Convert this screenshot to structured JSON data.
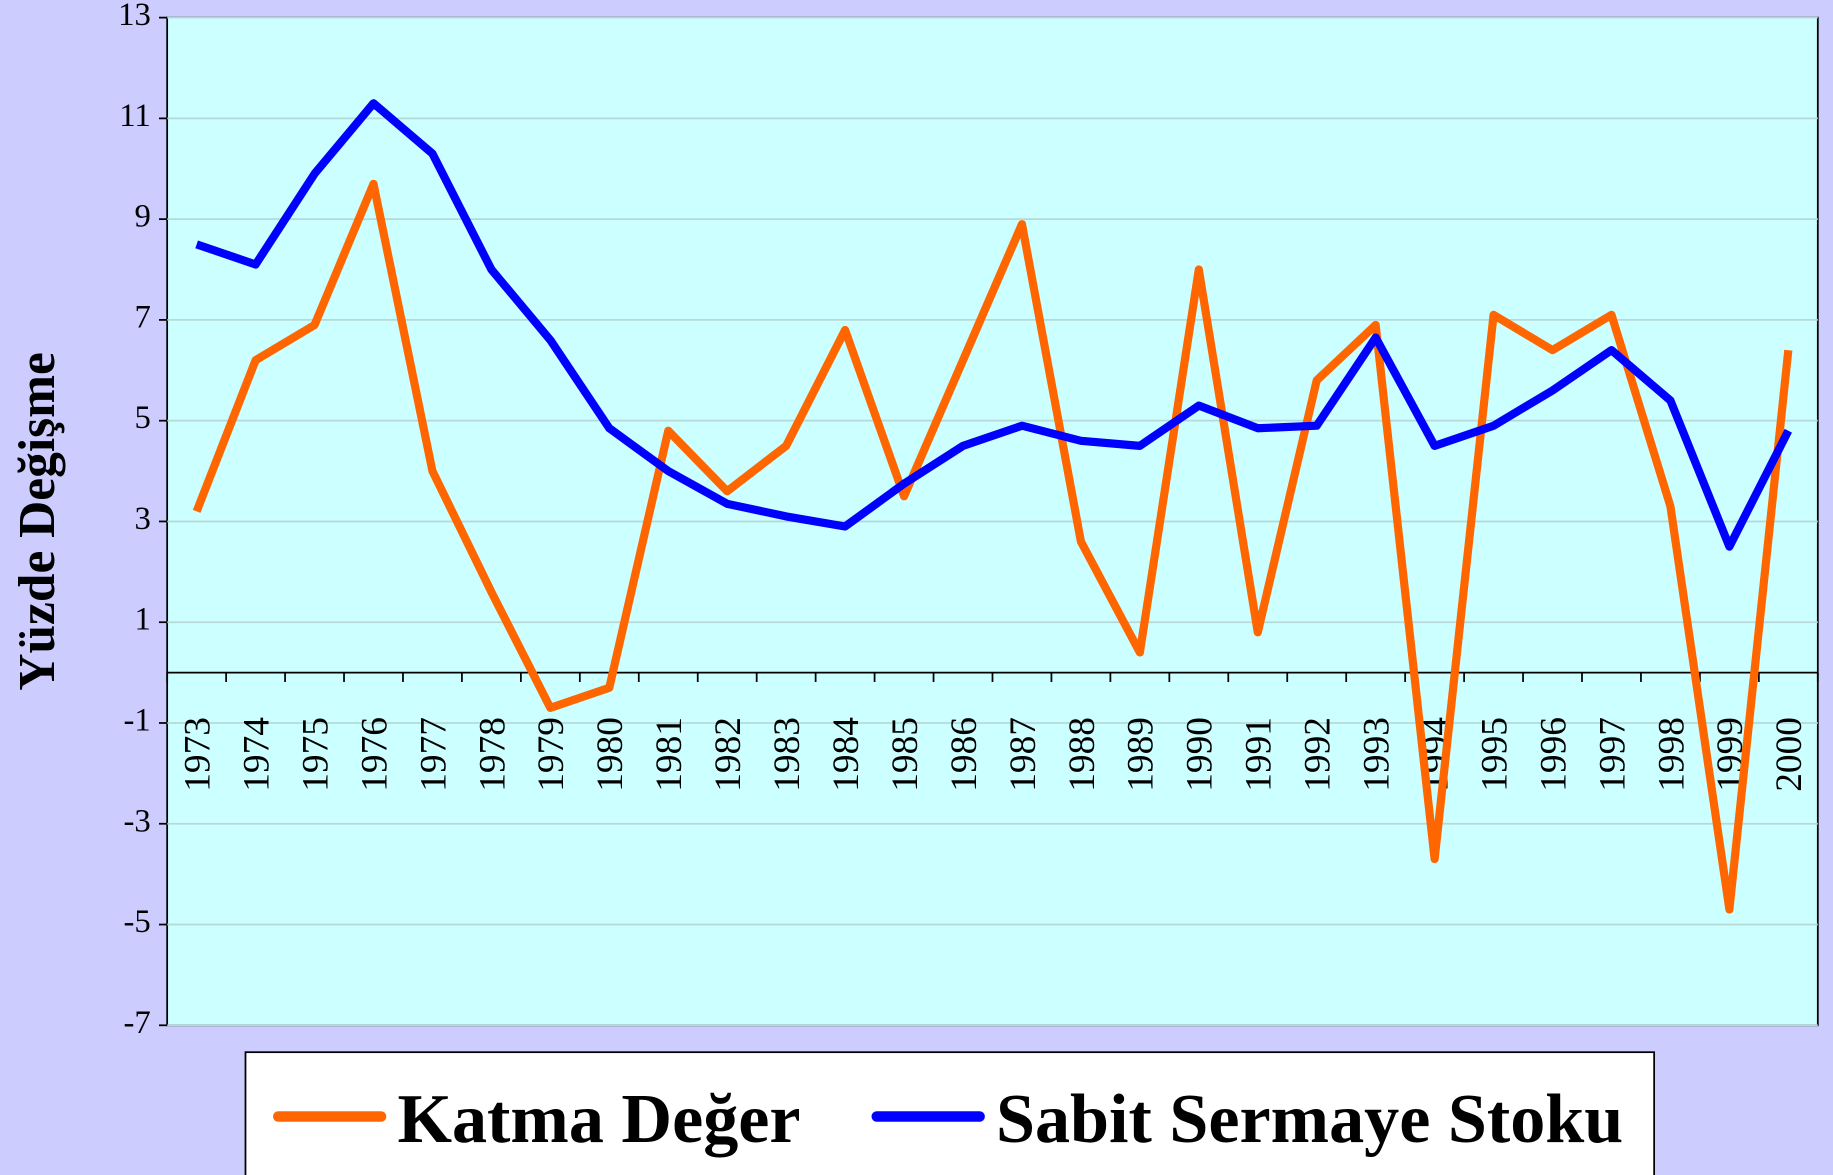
{
  "chart_data": {
    "type": "line",
    "y_label": "Yüzde Değişme",
    "categories": [
      "1973",
      "1974",
      "1975",
      "1976",
      "1977",
      "1978",
      "1979",
      "1980",
      "1981",
      "1982",
      "1983",
      "1984",
      "1985",
      "1986",
      "1987",
      "1988",
      "1989",
      "1990",
      "1991",
      "1992",
      "1993",
      "1994",
      "1995",
      "1996",
      "1997",
      "1998",
      "1999",
      "2000"
    ],
    "series": [
      {
        "name": "Katma Değer",
        "color": "#ff6600",
        "values": [
          3.2,
          6.2,
          6.9,
          9.7,
          4.0,
          1.6,
          -0.7,
          -0.3,
          4.8,
          3.6,
          4.5,
          6.8,
          3.5,
          6.2,
          8.9,
          2.6,
          0.4,
          8.0,
          0.8,
          5.8,
          6.9,
          -3.7,
          7.1,
          6.4,
          7.1,
          3.3,
          -4.7,
          6.4
        ]
      },
      {
        "name": "Sabit Sermaye Stoku",
        "color": "#0000ff",
        "values": [
          8.5,
          8.1,
          9.9,
          11.3,
          10.3,
          8.0,
          6.6,
          4.85,
          4.0,
          3.35,
          3.1,
          2.9,
          3.75,
          4.5,
          4.9,
          4.6,
          4.5,
          5.3,
          4.85,
          4.9,
          6.65,
          4.5,
          4.9,
          5.6,
          6.4,
          5.4,
          2.5,
          4.8
        ]
      }
    ],
    "ylim": [
      -7,
      13
    ],
    "yticks": [
      -7,
      -5,
      -3,
      -1,
      1,
      3,
      5,
      7,
      9,
      11,
      13
    ],
    "grid": true
  }
}
